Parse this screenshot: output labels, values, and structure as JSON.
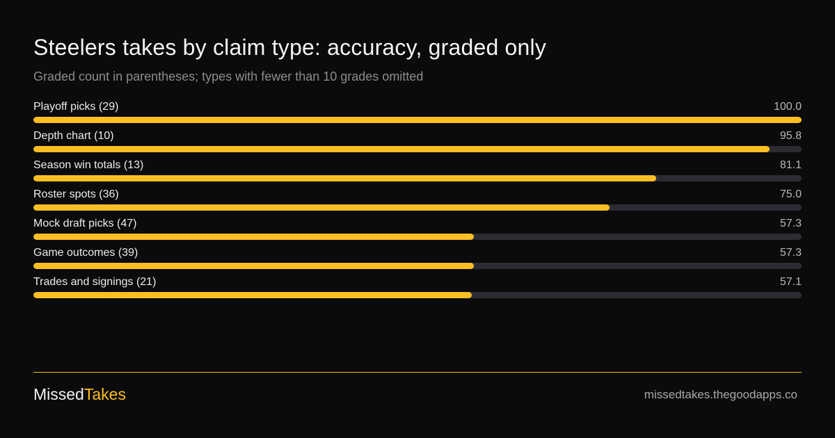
{
  "colors": {
    "background": "#0b0b0b",
    "accent": "#fbbf24",
    "track": "#2d2c32"
  },
  "chart_data": {
    "type": "bar",
    "orientation": "horizontal",
    "title": "Steelers takes by claim type: accuracy, graded only",
    "subtitle": "Graded count in parentheses; types with fewer than 10 grades omitted",
    "xlim": [
      0,
      100
    ],
    "grid": false,
    "categories": [
      "Playoff picks (29)",
      "Depth chart (10)",
      "Season win totals (13)",
      "Roster spots (36)",
      "Mock draft picks (47)",
      "Game outcomes (39)",
      "Trades and signings (21)"
    ],
    "values": [
      100.0,
      95.8,
      81.1,
      75.0,
      57.3,
      57.3,
      57.1
    ],
    "value_labels": [
      "100.0",
      "95.8",
      "81.1",
      "75.0",
      "57.3",
      "57.3",
      "57.1"
    ]
  },
  "footer": {
    "brand_part1": "Missed",
    "brand_part2": "Takes",
    "url": "missedtakes.thegoodapps.co"
  }
}
